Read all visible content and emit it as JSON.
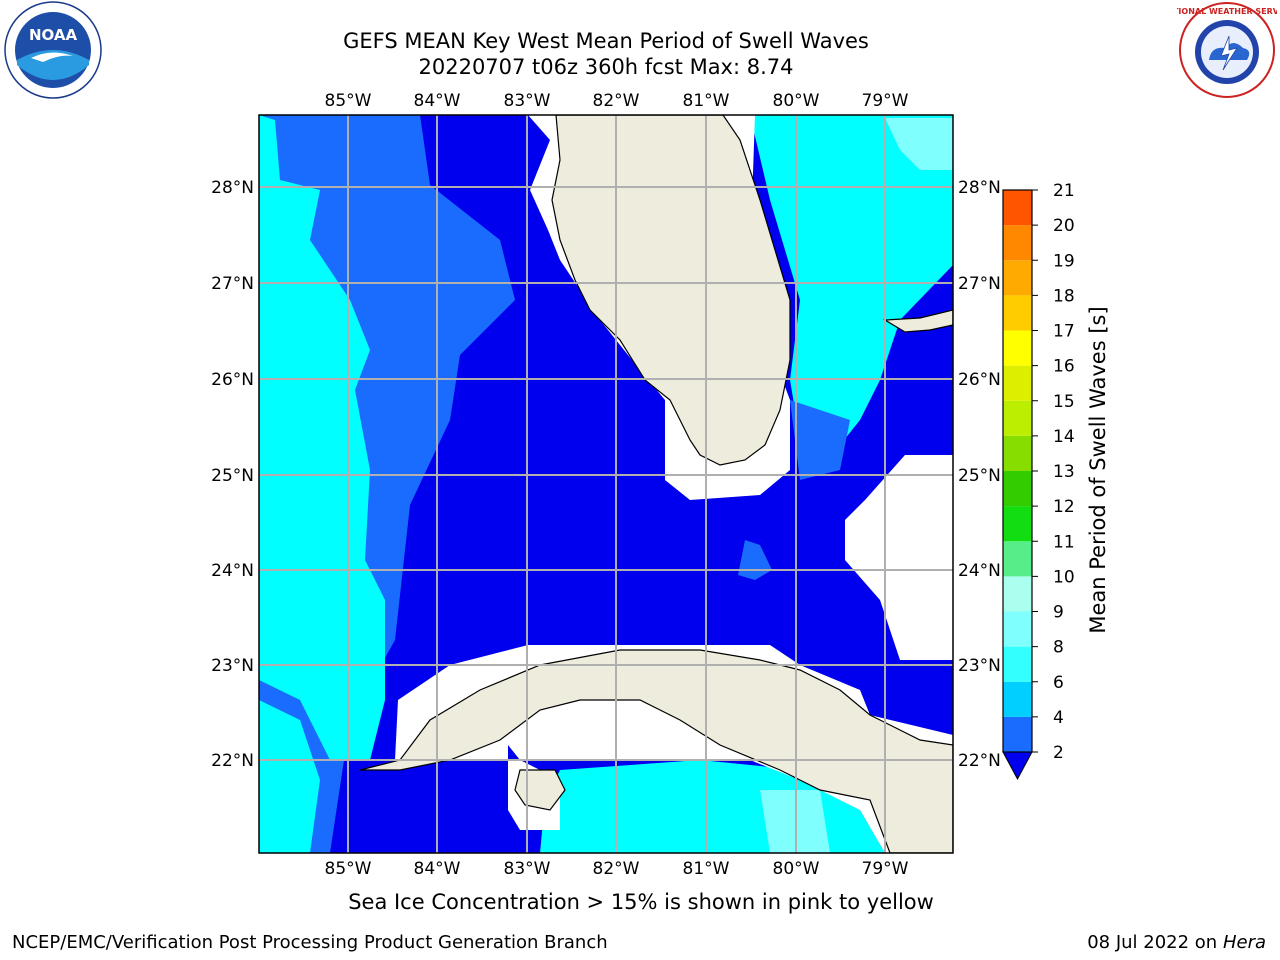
{
  "header": {
    "title_line1": "GEFS MEAN Key West Mean Period of Swell Waves",
    "title_line2": "20220707 t06z 360h fcst   Max: 8.74"
  },
  "logos": {
    "left": {
      "name": "noaa-logo",
      "text": "NOAA"
    },
    "right": {
      "name": "nws-logo",
      "text": "NATIONAL WEATHER SERVICE"
    }
  },
  "map": {
    "lon_labels": [
      "85°W",
      "84°W",
      "83°W",
      "82°W",
      "81°W",
      "80°W",
      "79°W"
    ],
    "lat_labels": [
      "28°N",
      "27°N",
      "26°N",
      "25°N",
      "24°N",
      "23°N",
      "22°N"
    ],
    "land_color": "#eeecdc",
    "gridline_color": "#b0b0b0"
  },
  "colorbar": {
    "label": "Mean Period of Swell Waves [s]",
    "ticks": [
      "2",
      "4",
      "6",
      "8",
      "9",
      "10",
      "11",
      "12",
      "13",
      "14",
      "15",
      "16",
      "17",
      "18",
      "19",
      "20",
      "21"
    ],
    "colors": [
      "#1a6cff",
      "#00cfff",
      "#33ffff",
      "#80ffff",
      "#aaffee",
      "#55ee88",
      "#11dd11",
      "#33cc00",
      "#88dd00",
      "#bbee00",
      "#ddee00",
      "#ffff00",
      "#ffcc00",
      "#ffaa00",
      "#ff8800",
      "#ff5500",
      "#ff2200",
      "#ff0000"
    ],
    "extend_color": "#0000ee"
  },
  "caption": "Sea Ice Concentration > 15% is shown in pink to yellow",
  "footer": {
    "left": "NCEP/EMC/Verification Post Processing Product Generation Branch",
    "date": "08 Jul 2022 on",
    "machine": "Hera"
  }
}
